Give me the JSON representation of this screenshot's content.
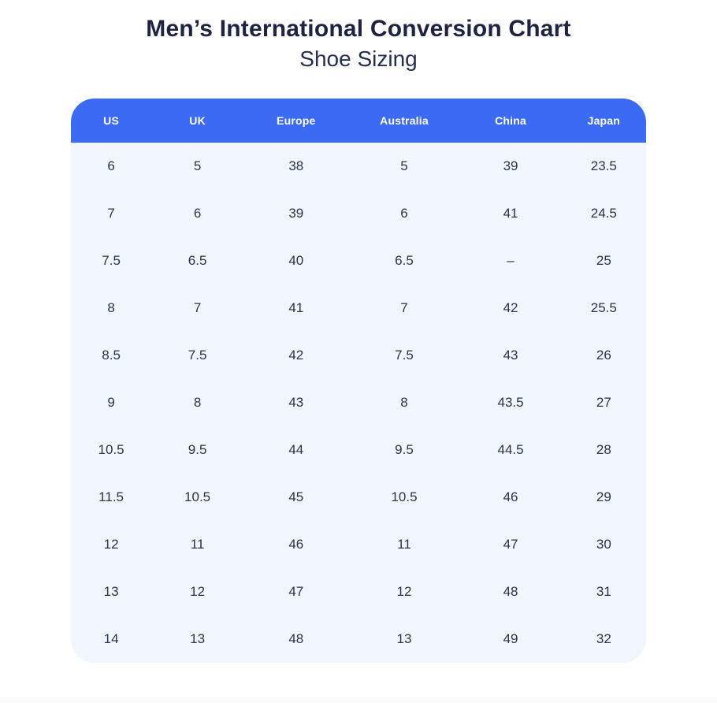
{
  "page": {
    "title": "Men’s International Conversion Chart",
    "subtitle": "Shoe Sizing"
  },
  "colors": {
    "header_bg": "#3b6af3",
    "header_text": "#ffffff",
    "body_bg": "#f1f5fc",
    "cell_text": "#2b3448",
    "title_text": "#1e2342",
    "page_bg": "#ffffff"
  },
  "chart_data": {
    "type": "table",
    "title": "Men’s International Conversion Chart",
    "subtitle": "Shoe Sizing",
    "columns": [
      "US",
      "UK",
      "Europe",
      "Australia",
      "China",
      "Japan"
    ],
    "rows": [
      [
        "6",
        "5",
        "38",
        "5",
        "39",
        "23.5"
      ],
      [
        "7",
        "6",
        "39",
        "6",
        "41",
        "24.5"
      ],
      [
        "7.5",
        "6.5",
        "40",
        "6.5",
        "–",
        "25"
      ],
      [
        "8",
        "7",
        "41",
        "7",
        "42",
        "25.5"
      ],
      [
        "8.5",
        "7.5",
        "42",
        "7.5",
        "43",
        "26"
      ],
      [
        "9",
        "8",
        "43",
        "8",
        "43.5",
        "27"
      ],
      [
        "10.5",
        "9.5",
        "44",
        "9.5",
        "44.5",
        "28"
      ],
      [
        "11.5",
        "10.5",
        "45",
        "10.5",
        "46",
        "29"
      ],
      [
        "12",
        "11",
        "46",
        "11",
        "47",
        "30"
      ],
      [
        "13",
        "12",
        "47",
        "12",
        "48",
        "31"
      ],
      [
        "14",
        "13",
        "48",
        "13",
        "49",
        "32"
      ]
    ]
  }
}
